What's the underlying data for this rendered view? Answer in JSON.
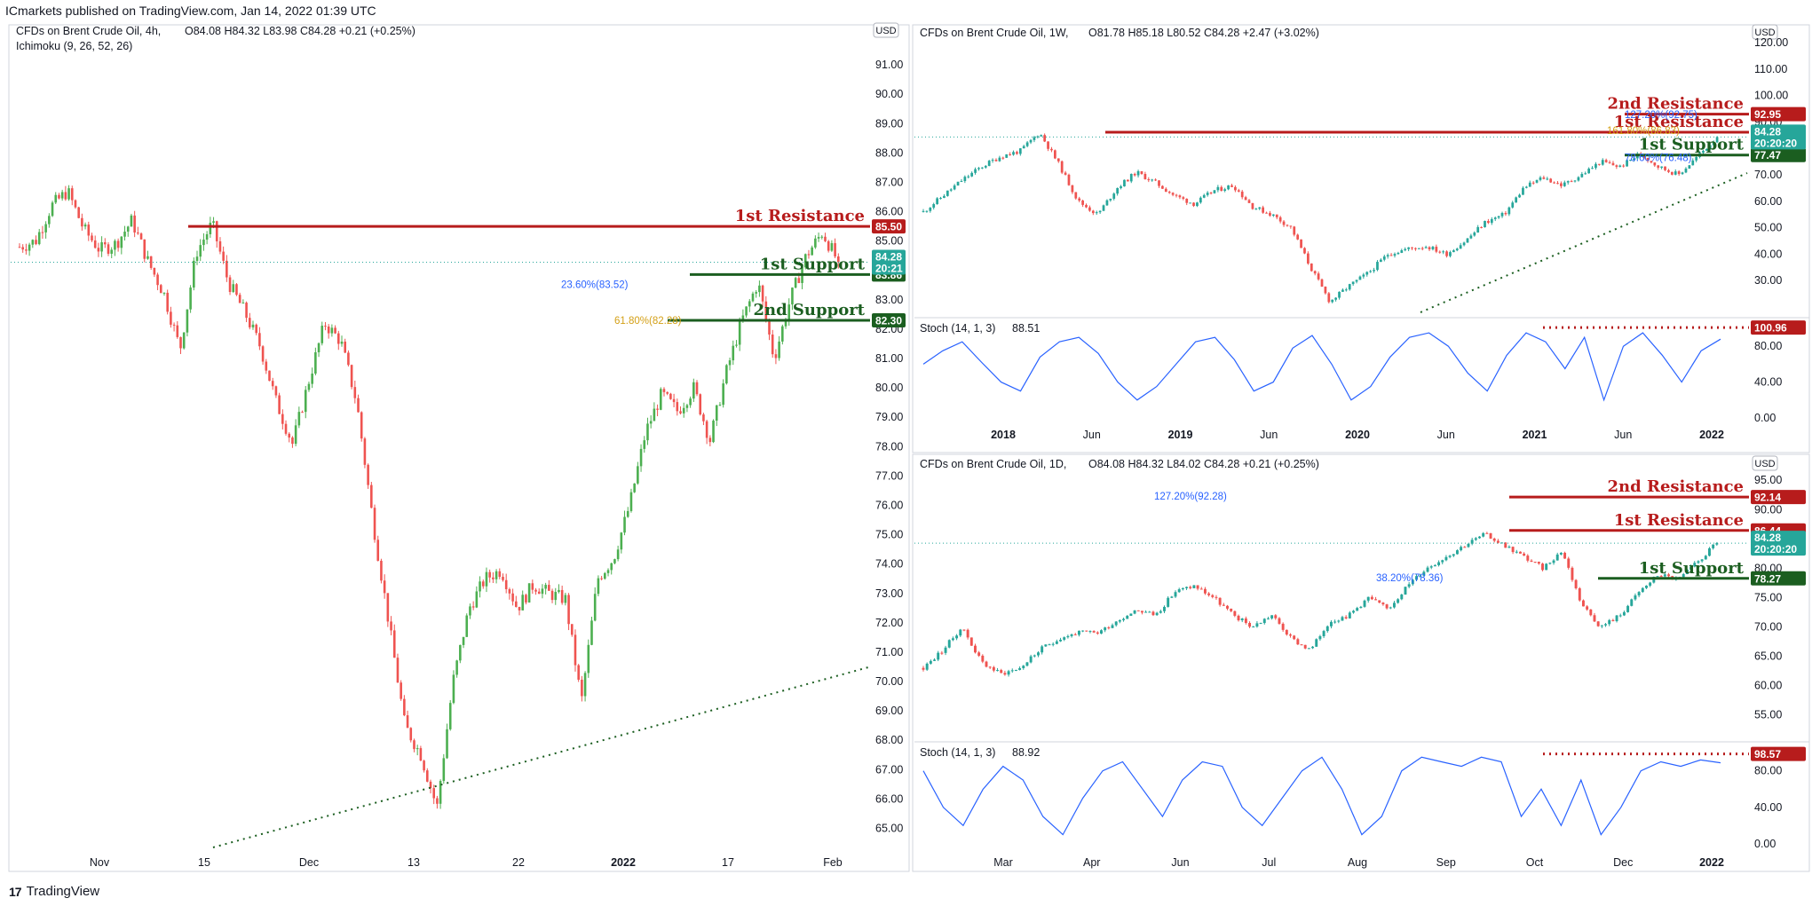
{
  "header": {
    "published": "ICmarkets published on TradingView.com, Jan 14, 2022 01:39 UTC"
  },
  "footer": {
    "brand": "TradingView"
  },
  "colors": {
    "up": "#26a69a",
    "up_left": "#4caf50",
    "down": "#ef5350",
    "resistance": "#b71c1c",
    "support": "#1b5e20",
    "price": "#26a69a",
    "stoch": "#2962ff",
    "trend": "#1b5e20"
  },
  "chart_data": [
    {
      "id": "h4",
      "type": "candlestick",
      "title": "CFDs on Brent Crude Oil, 4h,",
      "ohlc": {
        "o": "O84.08",
        "h": "H84.32",
        "l": "L83.98",
        "c": "C84.28",
        "chg": "+0.21 (+0.25%)"
      },
      "indicator": "Ichimoku (9, 26, 52, 26)",
      "currency": "USD",
      "ylim": [
        64.2,
        92.0
      ],
      "y_ticks": [
        "65.00",
        "66.00",
        "67.00",
        "68.00",
        "69.00",
        "70.00",
        "71.00",
        "72.00",
        "73.00",
        "74.00",
        "75.00",
        "76.00",
        "77.00",
        "78.00",
        "79.00",
        "80.00",
        "81.00",
        "82.00",
        "83.00",
        "84.00",
        "85.00",
        "86.00",
        "87.00",
        "88.00",
        "89.00",
        "90.00",
        "91.00"
      ],
      "x_ticks": [
        "Nov",
        "15",
        "Dec",
        "13",
        "22",
        "2022",
        "17",
        "Feb"
      ],
      "price_path": [
        84.8,
        85.0,
        86.2,
        86.7,
        85.4,
        84.7,
        84.9,
        85.7,
        84.3,
        83.2,
        81.3,
        84.6,
        85.6,
        83.6,
        82.6,
        81.4,
        79.5,
        78.1,
        80.2,
        82.2,
        81.6,
        79.5,
        75.5,
        72.0,
        68.5,
        67.5,
        65.7,
        70.0,
        72.5,
        73.5,
        73.8,
        72.5,
        73.3,
        73.0,
        72.8,
        69.3,
        73.5,
        74.2,
        76.0,
        78.5,
        79.8,
        79.2,
        80.0,
        78.2,
        80.5,
        82.3,
        83.6,
        81.0,
        83.0,
        84.5,
        85.3,
        84.28
      ],
      "levels": [
        {
          "label": "1st Resistance",
          "tag": "85.50",
          "value": 85.5,
          "kind": "resistance"
        },
        {
          "label": "1st Support",
          "tag": "83.86",
          "value": 83.86,
          "kind": "support"
        },
        {
          "label": "2nd Support",
          "tag": "82.30",
          "value": 82.3,
          "kind": "support"
        }
      ],
      "fibs": [
        {
          "label": "23.60%(83.52)",
          "value": 83.52,
          "color": "#2962ff"
        },
        {
          "label": "61.80%(82.28)",
          "value": 82.3,
          "color": "#d4a017"
        }
      ],
      "last_price": {
        "value": "84.28",
        "timer": "20:21"
      }
    },
    {
      "id": "w1",
      "type": "candlestick",
      "title": "CFDs on Brent Crude Oil, 1W,",
      "ohlc": {
        "o": "O81.78",
        "h": "H85.18",
        "l": "L80.52",
        "c": "C84.28",
        "chg": "+2.47 (+3.02%)"
      },
      "currency": "USD",
      "ylim": [
        18,
        122
      ],
      "y_ticks": [
        "30.00",
        "40.00",
        "50.00",
        "60.00",
        "70.00",
        "80.00",
        "90.00",
        "100.00",
        "110.00",
        "120.00"
      ],
      "x_ticks": [
        "2018",
        "Jun",
        "2019",
        "Jun",
        "2020",
        "Jun",
        "2021",
        "Jun",
        "2022"
      ],
      "price_path": [
        56,
        62,
        68,
        73,
        77,
        79,
        86,
        74,
        60,
        55,
        65,
        71,
        67,
        62,
        59,
        64,
        66,
        58,
        55,
        50,
        35,
        22,
        28,
        33,
        40,
        42,
        43,
        40,
        45,
        52,
        55,
        65,
        69,
        66,
        70,
        75,
        73,
        78,
        73,
        70,
        77,
        84.28
      ],
      "levels": [
        {
          "label": "2nd Resistance",
          "tag": "92.95",
          "value": 92.95,
          "kind": "resistance"
        },
        {
          "label": "1st Resistance",
          "tag": "86.10",
          "value": 86.1,
          "kind": "resistance"
        },
        {
          "label": "1st Support",
          "tag": "77.47",
          "value": 77.47,
          "kind": "support"
        }
      ],
      "fibs": [
        {
          "label": "127.20%(92.75)",
          "value": 92.75,
          "color": "#2962ff"
        },
        {
          "label": "161.80%(86.83)",
          "value": 86.83,
          "color": "#d4a017"
        },
        {
          "label": "78.60%(76.48)",
          "value": 76.48,
          "color": "#2962ff"
        }
      ],
      "last_price": {
        "value": "84.28",
        "timer": "20:20:20"
      },
      "stoch": {
        "label": "Stoch (14, 1, 3)",
        "value": "88.51",
        "ylim": [
          -5,
          108
        ],
        "y_ticks": [
          "0.00",
          "40.00",
          "80.00"
        ],
        "level_tag": "100.96",
        "values": [
          60,
          75,
          85,
          62,
          40,
          30,
          68,
          85,
          90,
          72,
          40,
          20,
          35,
          60,
          85,
          90,
          65,
          30,
          40,
          78,
          92,
          60,
          20,
          35,
          68,
          90,
          95,
          80,
          50,
          30,
          70,
          95,
          85,
          55,
          90,
          20,
          80,
          95,
          70,
          40,
          75,
          88
        ]
      }
    },
    {
      "id": "d1",
      "type": "candlestick",
      "title": "CFDs on Brent Crude Oil, 1D,",
      "ohlc": {
        "o": "O84.08",
        "h": "H84.32",
        "l": "L84.02",
        "c": "C84.28",
        "chg": "+0.21 (+0.25%)"
      },
      "currency": "USD",
      "ylim": [
        51,
        97
      ],
      "y_ticks": [
        "55.00",
        "60.00",
        "65.00",
        "70.00",
        "75.00",
        "80.00",
        "85.00",
        "90.00",
        "95.00"
      ],
      "x_ticks": [
        "Mar",
        "Apr",
        "Jun",
        "Jul",
        "Aug",
        "Sep",
        "Oct",
        "Dec",
        "2022"
      ],
      "price_path": [
        63,
        66,
        70,
        64,
        62,
        63,
        66,
        68,
        69,
        69,
        71,
        73,
        72,
        76,
        77,
        75,
        72,
        70,
        72,
        68,
        66,
        71,
        72,
        75,
        73,
        77,
        80,
        82,
        84,
        85.8,
        84,
        82,
        80,
        83,
        74,
        70,
        72,
        76,
        79,
        78,
        81,
        84.28
      ],
      "levels": [
        {
          "label": "2nd Resistance",
          "tag": "92.14",
          "value": 92.14,
          "kind": "resistance"
        },
        {
          "label": "1st Resistance",
          "tag": "86.44",
          "value": 86.44,
          "kind": "resistance"
        },
        {
          "label": "1st Support",
          "tag": "78.27",
          "value": 78.27,
          "kind": "support"
        }
      ],
      "fibs": [
        {
          "label": "127.20%(92.28)",
          "value": 92.28,
          "color": "#2962ff"
        },
        {
          "label": "38.20%(78.36)",
          "value": 78.36,
          "color": "#2962ff"
        }
      ],
      "last_price": {
        "value": "84.28",
        "timer": "20:20:20"
      },
      "stoch": {
        "label": "Stoch (14, 1, 3)",
        "value": "88.92",
        "ylim": [
          -5,
          108
        ],
        "y_ticks": [
          "0.00",
          "40.00",
          "80.00"
        ],
        "level_tag": "98.57",
        "values": [
          80,
          40,
          20,
          60,
          85,
          70,
          30,
          10,
          50,
          80,
          90,
          60,
          30,
          70,
          90,
          85,
          40,
          20,
          50,
          80,
          95,
          60,
          10,
          30,
          80,
          95,
          90,
          85,
          95,
          90,
          30,
          60,
          20,
          70,
          10,
          40,
          80,
          90,
          85,
          92,
          88.92
        ]
      }
    }
  ]
}
